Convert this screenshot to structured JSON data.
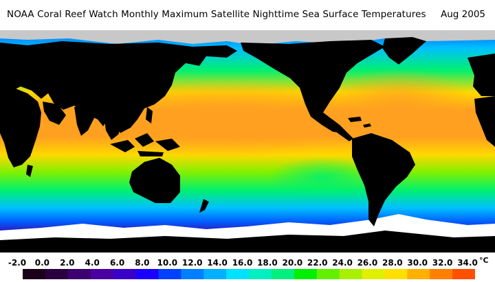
{
  "header": {
    "title": "NOAA Coral Reef Watch Monthly Maximum Satellite Nighttime Sea Surface Temperatures",
    "date": "Aug 2005"
  },
  "legend": {
    "ticks": [
      "-2.0",
      "0.0",
      "2.0",
      "4.0",
      "6.0",
      "8.0",
      "10.0",
      "12.0",
      "14.0",
      "16.0",
      "18.0",
      "20.0",
      "22.0",
      "24.0",
      "26.0",
      "28.0",
      "30.0",
      "32.0",
      "34.0"
    ],
    "unit": "°C",
    "colors": [
      "#1a0018",
      "#2a0040",
      "#3c0070",
      "#4a00a0",
      "#3a00c8",
      "#1a00ff",
      "#0040ff",
      "#0080ff",
      "#00b0ff",
      "#00e0ff",
      "#00f0c0",
      "#00f080",
      "#00f000",
      "#60f000",
      "#a8f000",
      "#e0f000",
      "#ffe000",
      "#ffb000",
      "#ff8000",
      "#ff5000"
    ]
  },
  "map": {
    "colors": {
      "land": "#000000",
      "ice": "#ffffff",
      "no_data": "#c8c8c8",
      "polar_south": "#3a00a8",
      "cold": "#0060ff",
      "cool": "#00c0ff",
      "temperate": "#00f070",
      "mild": "#80f000",
      "warm": "#ffd800",
      "hot": "#ffa020",
      "hottest": "#ff5020"
    }
  }
}
